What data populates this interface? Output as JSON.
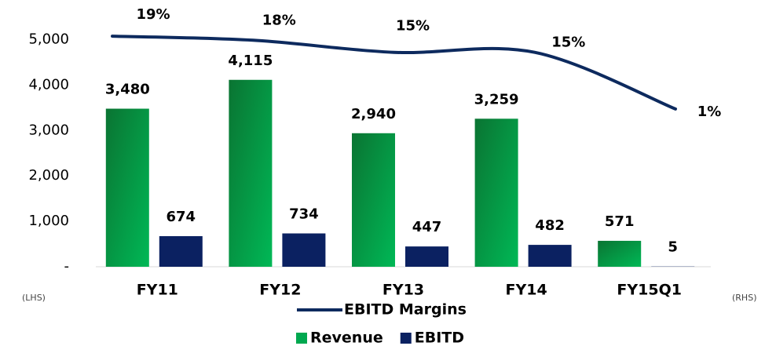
{
  "chart_data": {
    "type": "bar",
    "categories": [
      "FY11",
      "FY12",
      "FY13",
      "FY14",
      "FY15Q1"
    ],
    "series": [
      {
        "name": "Revenue",
        "color": "#00a84f",
        "values": [
          3480,
          4115,
          2940,
          3259,
          571
        ],
        "value_labels": [
          "3,480",
          "4,115",
          "2,940",
          "3,259",
          "571"
        ]
      },
      {
        "name": "EBITD",
        "color": "#0b2161",
        "values": [
          674,
          734,
          447,
          482,
          5
        ],
        "value_labels": [
          "674",
          "734",
          "447",
          "482",
          "5"
        ]
      },
      {
        "name": "EBITD Margins",
        "type": "line",
        "axis": "y2",
        "color": "#0d2a5e",
        "values": [
          19,
          18,
          15,
          15,
          1
        ],
        "value_labels": [
          "19%",
          "18%",
          "15%",
          "15%",
          "1%"
        ]
      }
    ],
    "ylim": [
      0,
      5700
    ],
    "yticks": [
      {
        "value": 0,
        "label": "-"
      },
      {
        "value": 1000,
        "label": "1,000"
      },
      {
        "value": 2000,
        "label": "2,000"
      },
      {
        "value": 3000,
        "label": "3,000"
      },
      {
        "value": 4000,
        "label": "4,000"
      },
      {
        "value": 5000,
        "label": "5,000"
      }
    ],
    "y2lim": [
      -38,
      26
    ],
    "y_axis_label": "(LHS)",
    "y2_axis_label": "(RHS)",
    "grid": false,
    "legend": "bottom"
  }
}
